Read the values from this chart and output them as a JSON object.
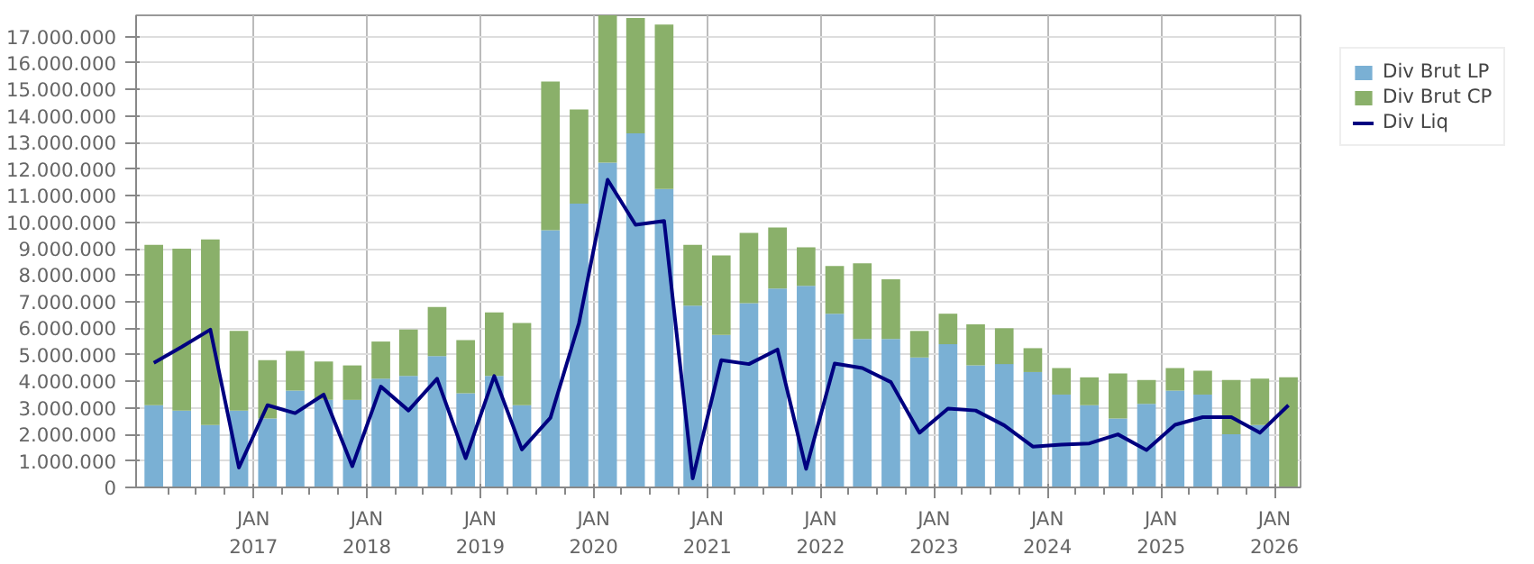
{
  "chart_data": {
    "type": "bar",
    "stacked": true,
    "x": [
      "2016-02-15",
      "2016-05-15",
      "2016-08-15",
      "2016-11-15",
      "2017-02-15",
      "2017-05-15",
      "2017-08-15",
      "2017-11-15",
      "2018-02-15",
      "2018-05-15",
      "2018-08-15",
      "2018-11-15",
      "2019-02-15",
      "2019-05-15",
      "2019-08-15",
      "2019-11-15",
      "2020-02-15",
      "2020-05-15",
      "2020-08-15",
      "2020-11-15",
      "2021-02-15",
      "2021-05-15",
      "2021-08-15",
      "2021-11-15",
      "2022-02-15",
      "2022-05-15",
      "2022-08-15",
      "2022-11-15",
      "2023-02-15",
      "2023-05-15",
      "2023-08-15",
      "2023-11-15",
      "2024-02-15",
      "2024-05-15",
      "2024-08-15",
      "2024-11-15",
      "2025-02-15",
      "2025-05-15",
      "2025-08-15",
      "2025-11-15",
      "2026-02-15"
    ],
    "series": [
      {
        "name": "Div Brut LP",
        "color": "#7ab0d4",
        "values": [
          3100000,
          2900000,
          2350000,
          2900000,
          2600000,
          3650000,
          3300000,
          3300000,
          4100000,
          4200000,
          4950000,
          3550000,
          4200000,
          3100000,
          9700000,
          10700000,
          12250000,
          13350000,
          11250000,
          6850000,
          5750000,
          6950000,
          7500000,
          7600000,
          6550000,
          5600000,
          5600000,
          4900000,
          5400000,
          4600000,
          4650000,
          4350000,
          3500000,
          3100000,
          2600000,
          3150000,
          3650000,
          3500000,
          2000000,
          2350000,
          0
        ]
      },
      {
        "name": "Div Brut CP",
        "color": "#8ab06a",
        "values": [
          6050000,
          6100000,
          7000000,
          3000000,
          2200000,
          1500000,
          1450000,
          1300000,
          1400000,
          1750000,
          1850000,
          2000000,
          2400000,
          3100000,
          5600000,
          3550000,
          5550000,
          4350000,
          6200000,
          2300000,
          3000000,
          2650000,
          2300000,
          1450000,
          1800000,
          2850000,
          2250000,
          1000000,
          1150000,
          1550000,
          1350000,
          900000,
          1000000,
          1050000,
          1700000,
          900000,
          850000,
          900000,
          2050000,
          1750000,
          4150000
        ]
      },
      {
        "name": "Div Liq",
        "color": "#000080",
        "type": "line",
        "values": [
          4700000,
          5300000,
          5950000,
          750000,
          3100000,
          2800000,
          3500000,
          800000,
          3800000,
          2900000,
          4100000,
          1100000,
          4200000,
          1430000,
          2630000,
          6200000,
          11600000,
          9900000,
          10050000,
          340000,
          4800000,
          4650000,
          5200000,
          700000,
          4670000,
          4500000,
          3970000,
          2060000,
          2970000,
          2900000,
          2340000,
          1540000,
          1610000,
          1660000,
          2000000,
          1410000,
          2360000,
          2650000,
          2650000,
          2060000,
          3100000
        ]
      }
    ],
    "xlim": [
      "2015-12-20",
      "2026-03-26"
    ],
    "xticks": [
      {
        "value": "2017-01-01",
        "label": "JAN\n2017"
      },
      {
        "value": "2018-01-01",
        "label": "JAN\n2018"
      },
      {
        "value": "2019-01-01",
        "label": "JAN\n2019"
      },
      {
        "value": "2020-01-01",
        "label": "JAN\n2020"
      },
      {
        "value": "2021-01-01",
        "label": "JAN\n2021"
      },
      {
        "value": "2022-01-01",
        "label": "JAN\n2022"
      },
      {
        "value": "2023-01-01",
        "label": "JAN\n2023"
      },
      {
        "value": "2024-01-01",
        "label": "JAN\n2024"
      },
      {
        "value": "2025-01-01",
        "label": "JAN\n2025"
      },
      {
        "value": "2026-01-01",
        "label": "JAN\n2026"
      }
    ],
    "ylim": [
      0,
      17800000
    ],
    "yticks": [
      0,
      {
        "value": 1000000,
        "label": "1.000.000"
      },
      {
        "value": 2000000,
        "label": "2.000.000"
      },
      {
        "value": 3000000,
        "label": "3.000.000"
      },
      {
        "value": 4000000,
        "label": "4.000.000"
      },
      {
        "value": 5000000,
        "label": "5.000.000"
      },
      {
        "value": 6000000,
        "label": "6.000.000"
      },
      {
        "value": 7000000,
        "label": "7.000.000"
      },
      {
        "value": 8000000,
        "label": "8.000.000"
      },
      {
        "value": 9000000,
        "label": "9.000.000"
      },
      {
        "value": 10000000,
        "label": "10.000.000"
      },
      {
        "value": 11000000,
        "label": "11.000.000"
      },
      {
        "value": 12000000,
        "label": "12.000.000"
      },
      {
        "value": 13000000,
        "label": "13.000.000"
      },
      {
        "value": 14000000,
        "label": "14.000.000"
      },
      {
        "value": 15000000,
        "label": "15.000.000"
      },
      {
        "value": 16000000,
        "label": "16.000.000"
      },
      {
        "value": 17000000,
        "label": "17.000.000"
      }
    ],
    "grid": true,
    "legend": "top right"
  }
}
